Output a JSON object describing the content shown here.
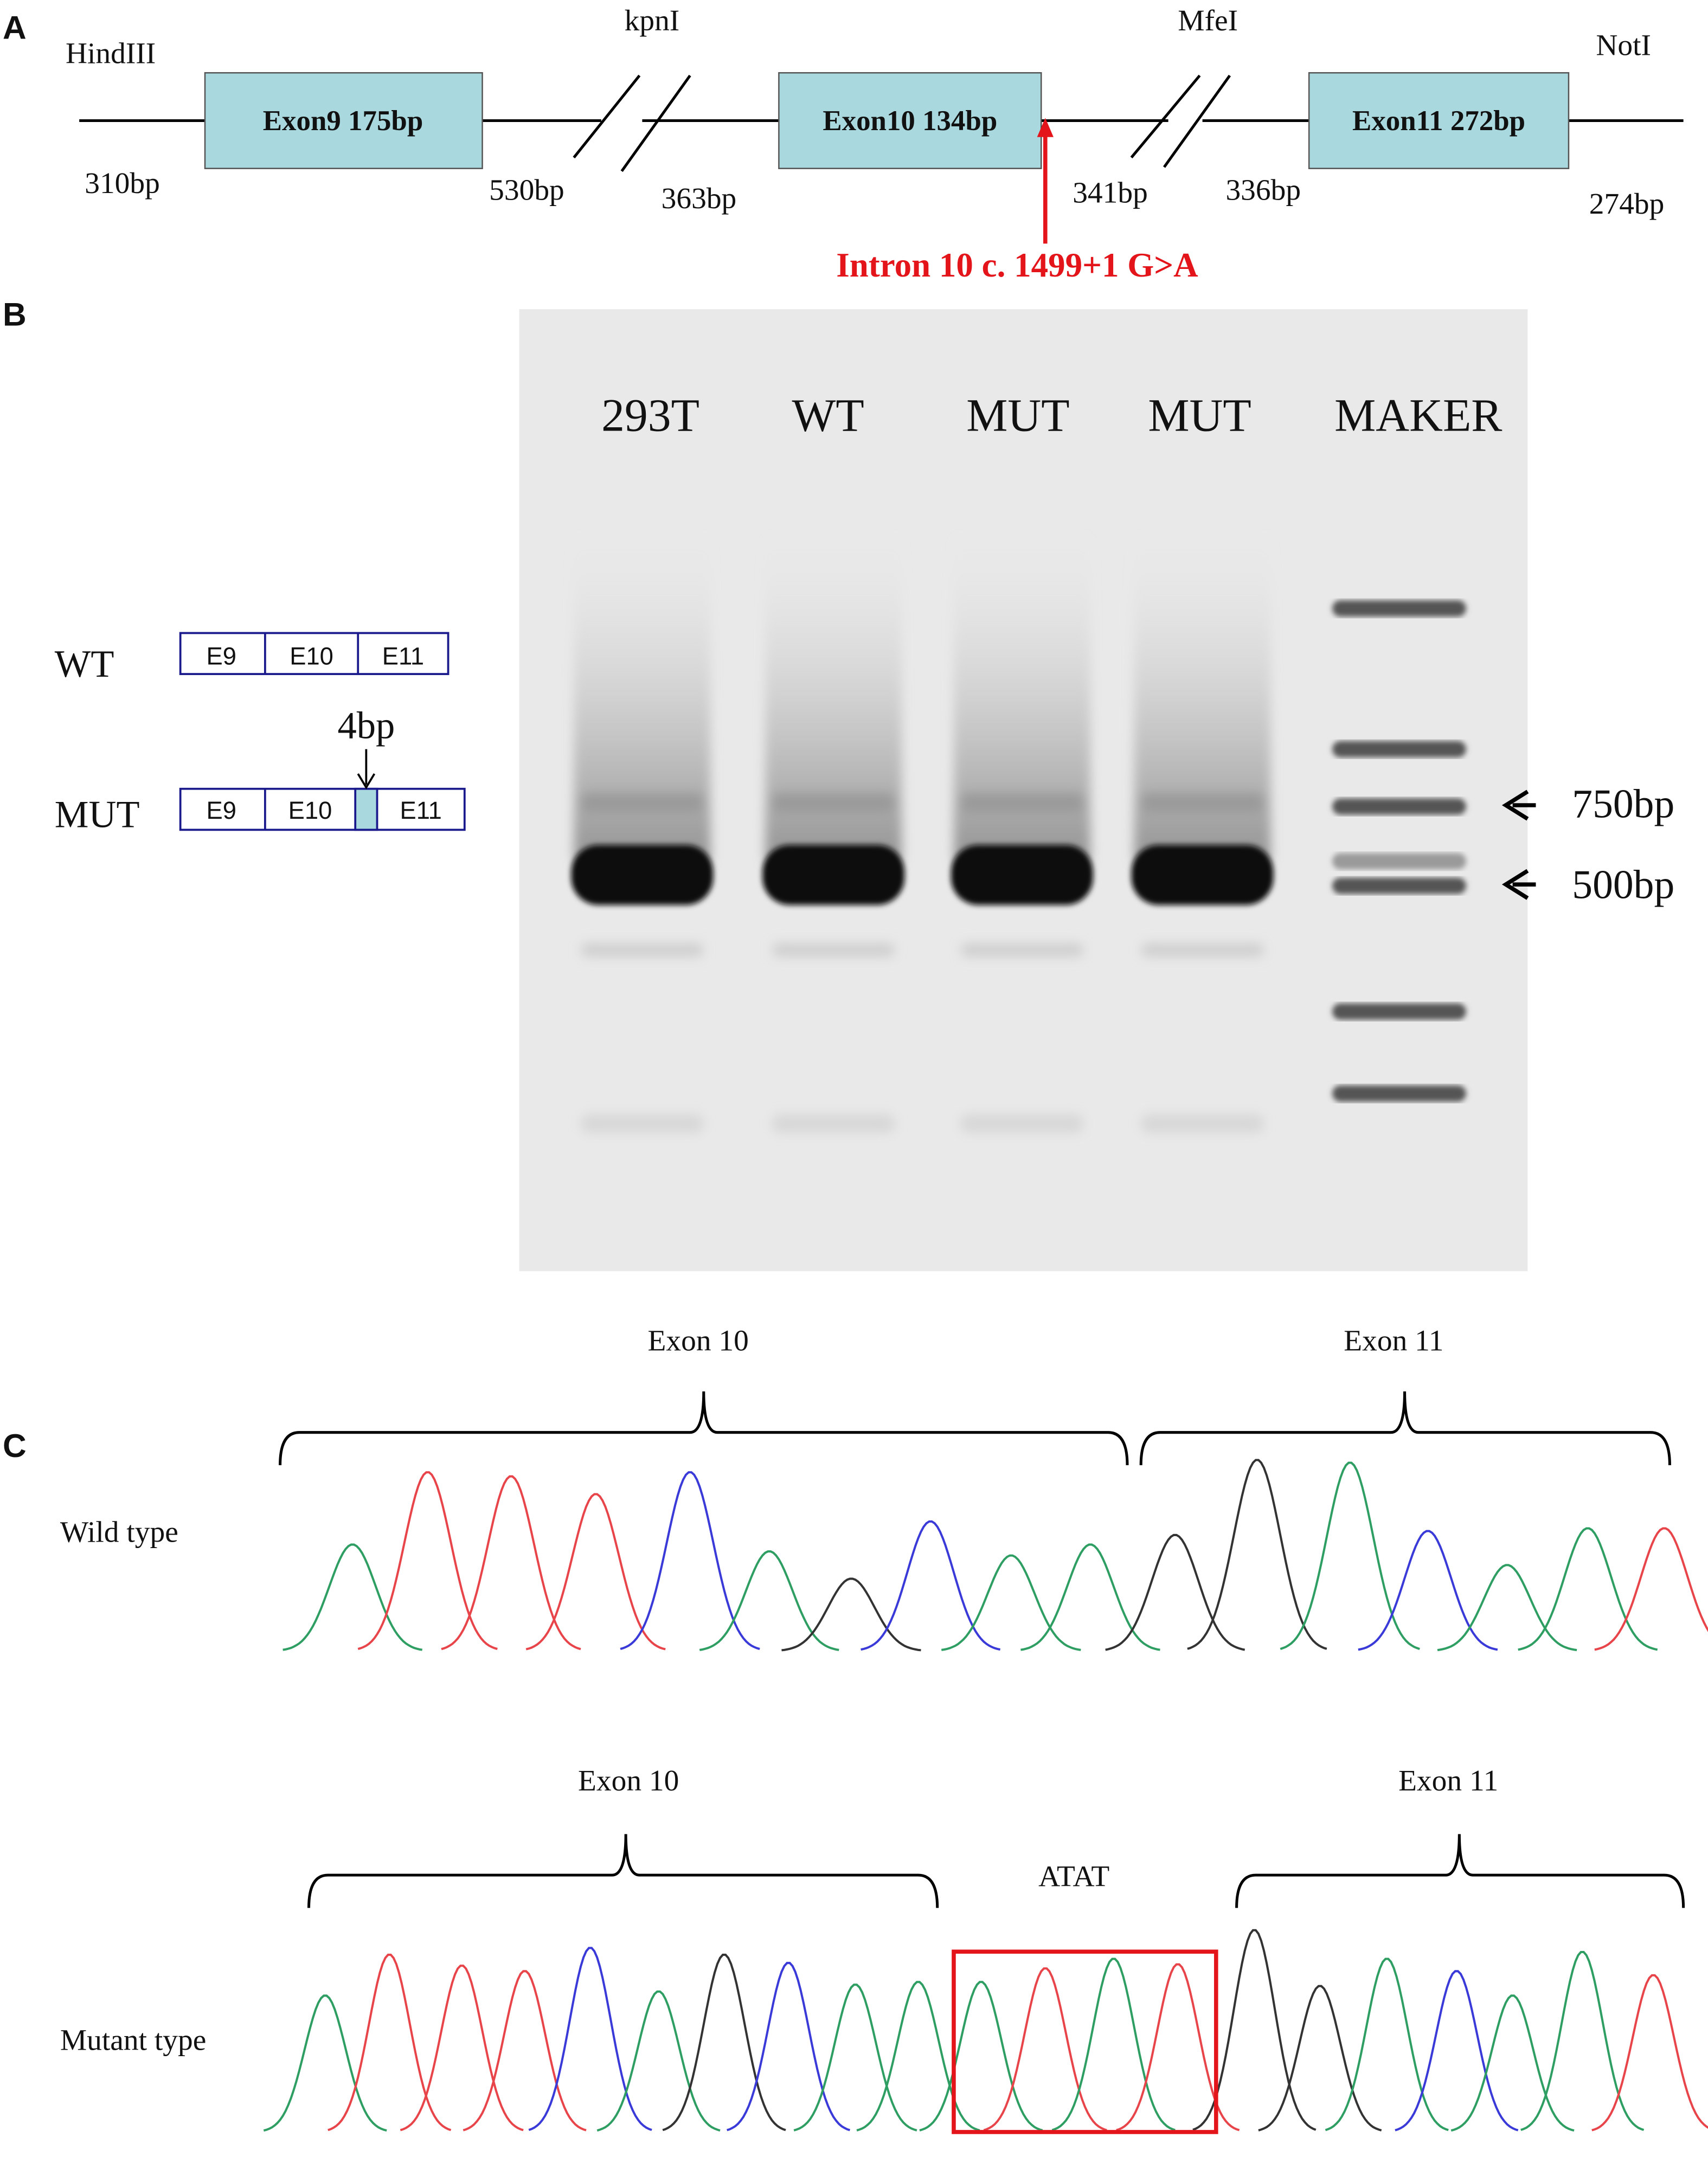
{
  "panel_a": {
    "label": "A",
    "sites": [
      "HindIII",
      "kpnI",
      "MfeI",
      "NotI"
    ],
    "exons": [
      "Exon9 175bp",
      "Exon10 134bp",
      "Exon11 272bp"
    ],
    "lengths": [
      "310bp",
      "530bp",
      "363bp",
      "341bp",
      "336bp",
      "274bp"
    ],
    "mutation": "Intron 10  c. 1499+1 G>A"
  },
  "panel_b": {
    "label": "B",
    "lanes": [
      "293T",
      "WT",
      "MUT",
      "MUT",
      "MAKER"
    ],
    "markers": [
      "750bp",
      "500bp"
    ],
    "schematic": {
      "wt": {
        "name": "WT",
        "exons": [
          "E9",
          "E10",
          "E11"
        ]
      },
      "mut": {
        "name": "MUT",
        "exons": [
          "E9",
          "E10",
          "E11"
        ],
        "insert": "4bp"
      }
    }
  },
  "panel_c": {
    "label": "C",
    "wild": {
      "name": "Wild type",
      "regions": [
        "Exon 10",
        "Exon 11"
      ]
    },
    "mutant": {
      "name": "Mutant type",
      "regions": [
        "Exon 10",
        "Exon 11"
      ],
      "insert": "ATAT"
    }
  }
}
